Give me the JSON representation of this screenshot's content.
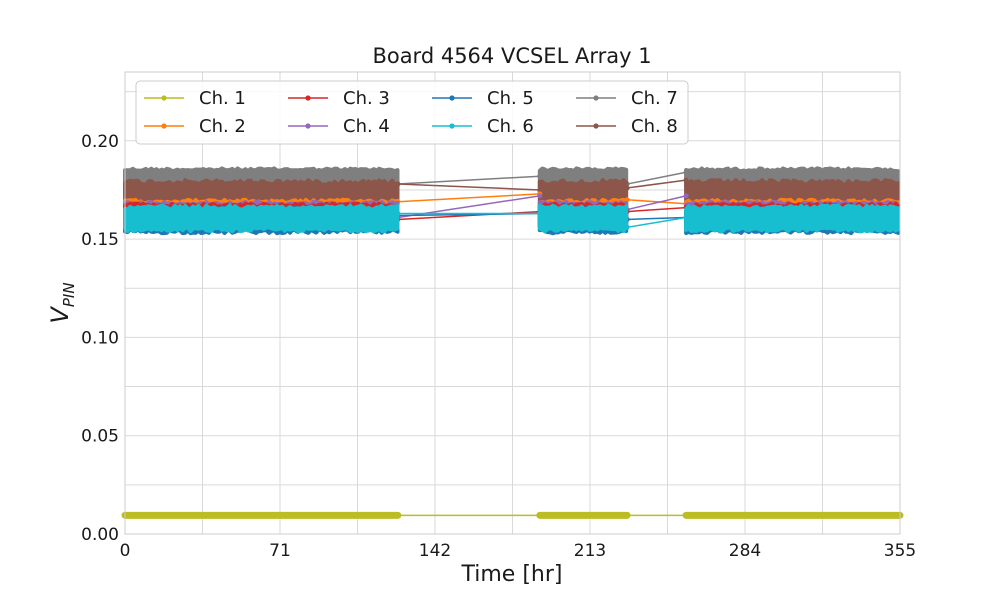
{
  "chart_data": {
    "type": "line",
    "title": "Board 4564 VCSEL Array 1",
    "xlabel": "Time [hr]",
    "ylabel": "V",
    "ylabel_sub": "PIN",
    "xlim": [
      0,
      355
    ],
    "ylim": [
      0,
      0.235
    ],
    "xticks": [
      0,
      71,
      142,
      213,
      284,
      355
    ],
    "yticks": [
      0.0,
      0.05,
      0.1,
      0.15,
      0.2
    ],
    "ytick_labels": [
      "0.00",
      "0.05",
      "0.10",
      "0.15",
      "0.20"
    ],
    "grid": true,
    "legend": {
      "placement": "top-left",
      "columns": 4
    },
    "segments": [
      [
        0,
        125
      ],
      [
        190,
        230
      ],
      [
        257,
        355
      ]
    ],
    "series": [
      {
        "name": "Ch. 1",
        "color": "#bcbd22",
        "band": [
          0.0085,
          0.0105
        ],
        "gap_points": [
          [
            125,
            0.0095
          ],
          [
            190,
            0.0095
          ],
          [
            230,
            0.0095
          ],
          [
            257,
            0.0095
          ]
        ]
      },
      {
        "name": "Ch. 2",
        "color": "#ff7f0e",
        "band": [
          0.158,
          0.17
        ],
        "gap_points": [
          [
            125,
            0.169
          ],
          [
            190,
            0.173
          ],
          [
            230,
            0.17
          ],
          [
            257,
            0.168
          ]
        ]
      },
      {
        "name": "Ch. 3",
        "color": "#d62728",
        "band": [
          0.156,
          0.168
        ],
        "gap_points": [
          [
            125,
            0.16
          ],
          [
            190,
            0.164
          ],
          [
            230,
            0.164
          ],
          [
            257,
            0.166
          ]
        ]
      },
      {
        "name": "Ch. 4",
        "color": "#9467bd",
        "band": [
          0.157,
          0.169
        ],
        "gap_points": [
          [
            125,
            0.161
          ],
          [
            190,
            0.172
          ],
          [
            230,
            0.165
          ],
          [
            257,
            0.172
          ]
        ]
      },
      {
        "name": "Ch. 5",
        "color": "#1f77b4",
        "band": [
          0.153,
          0.166
        ],
        "gap_points": [
          [
            125,
            0.162
          ],
          [
            190,
            0.163
          ],
          [
            230,
            0.16
          ],
          [
            257,
            0.161
          ]
        ]
      },
      {
        "name": "Ch. 6",
        "color": "#17becf",
        "band": [
          0.154,
          0.167
        ],
        "gap_points": [
          [
            125,
            0.163
          ],
          [
            190,
            0.163
          ],
          [
            230,
            0.156
          ],
          [
            257,
            0.161
          ]
        ]
      },
      {
        "name": "Ch. 7",
        "color": "#7f7f7f",
        "band": [
          0.176,
          0.186
        ],
        "gap_points": [
          [
            125,
            0.178
          ],
          [
            190,
            0.182
          ],
          [
            230,
            0.178
          ],
          [
            257,
            0.184
          ]
        ]
      },
      {
        "name": "Ch. 8",
        "color": "#8c564b",
        "band": [
          0.164,
          0.18
        ],
        "gap_points": [
          [
            125,
            0.178
          ],
          [
            190,
            0.175
          ],
          [
            230,
            0.176
          ],
          [
            257,
            0.18
          ]
        ]
      }
    ]
  }
}
